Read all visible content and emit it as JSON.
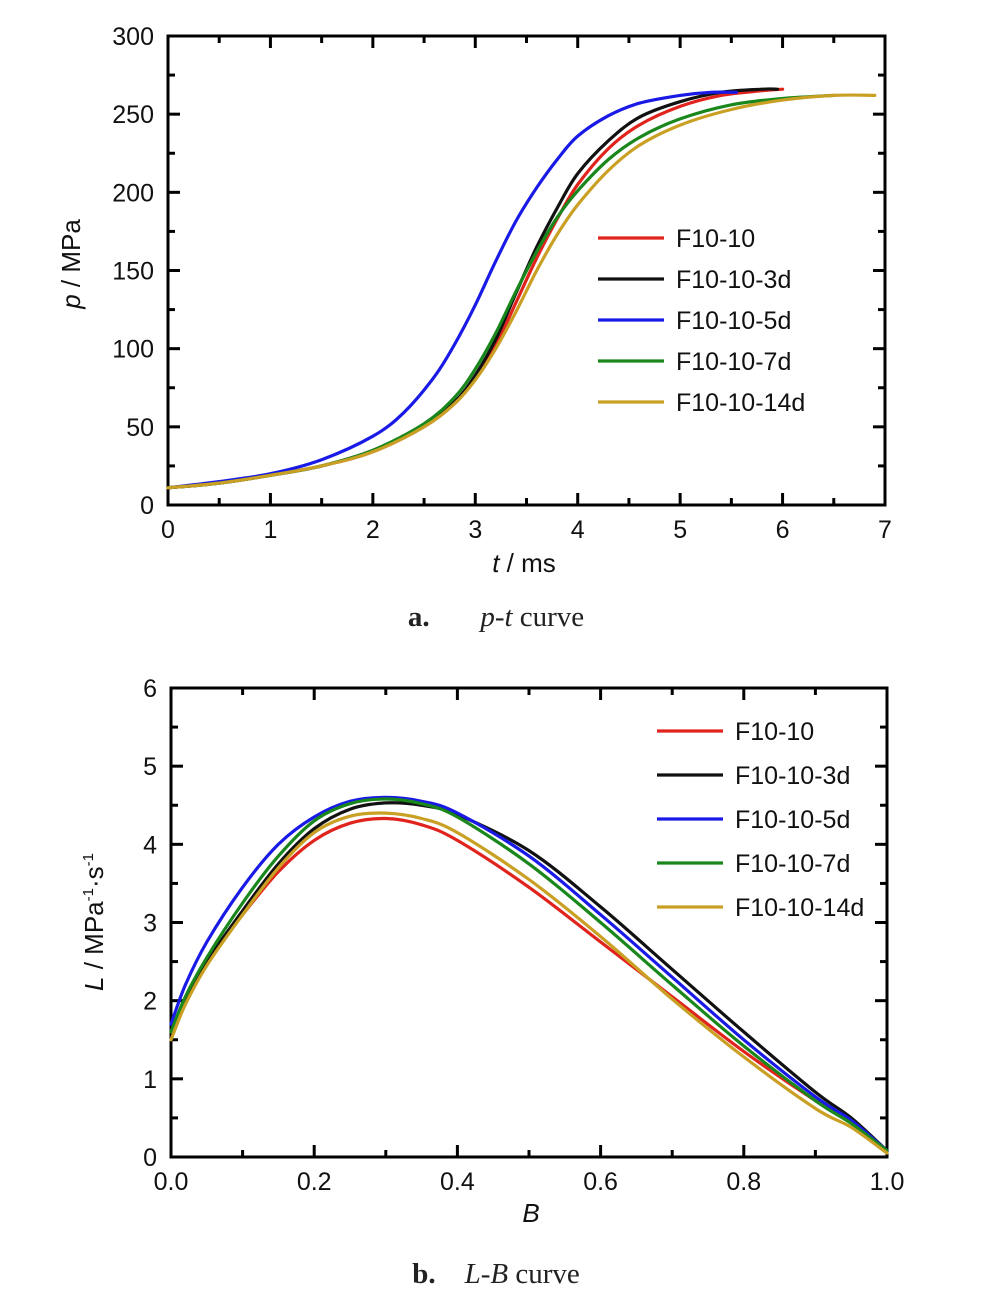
{
  "chart_data": [
    {
      "type": "line",
      "caption_letter": "a.",
      "caption_italic": "p-t",
      "caption_rest": " curve",
      "xlabel_italic": "t",
      "xlabel_rest": " / ms",
      "ylabel_italic": "p",
      "ylabel_rest": " / MPa",
      "xlim": [
        0,
        7
      ],
      "ylim": [
        0,
        300
      ],
      "xticks": [
        0,
        1,
        2,
        3,
        4,
        5,
        6,
        7
      ],
      "yticks": [
        0,
        50,
        100,
        150,
        200,
        250,
        300
      ],
      "legend_position": "center-right",
      "grid": false,
      "series": [
        {
          "name": "F10-10",
          "color": "#e0231c",
          "x": [
            0,
            0.5,
            1,
            1.5,
            2,
            2.5,
            2.8,
            3,
            3.2,
            3.4,
            3.6,
            3.8,
            4,
            4.3,
            4.6,
            5,
            5.4,
            5.8,
            6.0
          ],
          "y": [
            11,
            14,
            19,
            25,
            34,
            50,
            65,
            81,
            102,
            130,
            158,
            183,
            205,
            228,
            243,
            255,
            262,
            265,
            266
          ]
        },
        {
          "name": "F10-10-3d",
          "color": "#111111",
          "x": [
            0,
            0.5,
            1,
            1.5,
            2,
            2.5,
            2.8,
            3,
            3.2,
            3.4,
            3.6,
            3.8,
            4,
            4.3,
            4.6,
            5,
            5.4,
            5.8,
            5.95
          ],
          "y": [
            11,
            14,
            19,
            25,
            35,
            51,
            66,
            83,
            106,
            136,
            165,
            190,
            212,
            233,
            248,
            258,
            264,
            266,
            266
          ]
        },
        {
          "name": "F10-10-5d",
          "color": "#1a1ae6",
          "x": [
            0,
            0.5,
            1,
            1.5,
            2,
            2.3,
            2.6,
            2.8,
            3,
            3.2,
            3.4,
            3.6,
            3.8,
            4,
            4.3,
            4.6,
            5,
            5.3,
            5.55
          ],
          "y": [
            11,
            15,
            20,
            29,
            44,
            59,
            82,
            103,
            128,
            156,
            182,
            203,
            221,
            236,
            249,
            257,
            262,
            264,
            264
          ]
        },
        {
          "name": "F10-10-7d",
          "color": "#19871c",
          "x": [
            0,
            0.5,
            1,
            1.5,
            2,
            2.5,
            2.8,
            3,
            3.2,
            3.4,
            3.6,
            3.8,
            4,
            4.3,
            4.6,
            5,
            5.5,
            6,
            6.5
          ],
          "y": [
            11,
            14,
            19,
            25,
            35,
            52,
            69,
            87,
            110,
            137,
            162,
            184,
            201,
            221,
            235,
            247,
            256,
            260,
            262
          ]
        },
        {
          "name": "F10-10-14d",
          "color": "#c9a023",
          "x": [
            0,
            0.5,
            1,
            1.5,
            2,
            2.5,
            2.8,
            3,
            3.2,
            3.4,
            3.6,
            3.8,
            4,
            4.3,
            4.6,
            5,
            5.5,
            6,
            6.5,
            6.9
          ],
          "y": [
            11,
            14,
            19,
            25,
            34,
            50,
            65,
            80,
            100,
            124,
            150,
            173,
            192,
            214,
            230,
            243,
            253,
            259,
            262,
            262
          ]
        }
      ]
    },
    {
      "type": "line",
      "caption_letter": "b.",
      "caption_italic": "L-B",
      "caption_rest": " curve",
      "xlabel_italic": "B",
      "xlabel_rest": "",
      "ylabel_italic": "L",
      "ylabel_rest": " / MPa",
      "ylabel_sup1": "-1",
      "ylabel_mid": "·s",
      "ylabel_sup2": "-1",
      "xlim": [
        0,
        1
      ],
      "ylim": [
        0,
        6
      ],
      "xticks": [
        0.0,
        0.2,
        0.4,
        0.6,
        0.8,
        1.0
      ],
      "xtick_labels": [
        "0.0",
        "0.2",
        "0.4",
        "0.6",
        "0.8",
        "1.0"
      ],
      "yticks": [
        0,
        1,
        2,
        3,
        4,
        5,
        6
      ],
      "legend_position": "top-right",
      "grid": false,
      "series": [
        {
          "name": "F10-10",
          "color": "#e0231c",
          "x": [
            0,
            0.02,
            0.05,
            0.1,
            0.15,
            0.2,
            0.25,
            0.3,
            0.35,
            0.4,
            0.5,
            0.6,
            0.7,
            0.8,
            0.9,
            0.95,
            1.0
          ],
          "y": [
            1.6,
            2.0,
            2.5,
            3.1,
            3.65,
            4.05,
            4.27,
            4.33,
            4.25,
            4.05,
            3.45,
            2.75,
            2.05,
            1.35,
            0.72,
            0.45,
            0.08
          ]
        },
        {
          "name": "F10-10-3d",
          "color": "#111111",
          "x": [
            0,
            0.02,
            0.05,
            0.1,
            0.15,
            0.2,
            0.25,
            0.3,
            0.35,
            0.4,
            0.5,
            0.6,
            0.7,
            0.8,
            0.9,
            0.95,
            1.0
          ],
          "y": [
            1.6,
            2.0,
            2.5,
            3.15,
            3.75,
            4.2,
            4.45,
            4.53,
            4.5,
            4.38,
            3.92,
            3.2,
            2.4,
            1.6,
            0.83,
            0.5,
            0.08
          ]
        },
        {
          "name": "F10-10-5d",
          "color": "#1a1ae6",
          "x": [
            0,
            0.02,
            0.05,
            0.1,
            0.15,
            0.2,
            0.25,
            0.3,
            0.35,
            0.4,
            0.5,
            0.6,
            0.7,
            0.8,
            0.9,
            0.95,
            1.0
          ],
          "y": [
            1.7,
            2.2,
            2.75,
            3.45,
            4.0,
            4.35,
            4.55,
            4.6,
            4.55,
            4.4,
            3.85,
            3.1,
            2.3,
            1.5,
            0.77,
            0.47,
            0.08
          ]
        },
        {
          "name": "F10-10-7d",
          "color": "#19871c",
          "x": [
            0,
            0.02,
            0.05,
            0.1,
            0.15,
            0.2,
            0.25,
            0.3,
            0.35,
            0.4,
            0.5,
            0.6,
            0.7,
            0.8,
            0.9,
            0.95,
            1.0
          ],
          "y": [
            1.6,
            2.05,
            2.55,
            3.25,
            3.85,
            4.3,
            4.52,
            4.58,
            4.52,
            4.35,
            3.75,
            3.0,
            2.2,
            1.42,
            0.72,
            0.43,
            0.08
          ]
        },
        {
          "name": "F10-10-14d",
          "color": "#c9a023",
          "x": [
            0,
            0.02,
            0.05,
            0.1,
            0.15,
            0.2,
            0.25,
            0.3,
            0.35,
            0.4,
            0.5,
            0.6,
            0.7,
            0.8,
            0.9,
            0.95,
            1.0
          ],
          "y": [
            1.5,
            1.95,
            2.45,
            3.1,
            3.7,
            4.15,
            4.36,
            4.4,
            4.33,
            4.15,
            3.55,
            2.82,
            2.02,
            1.28,
            0.62,
            0.38,
            0.05
          ]
        }
      ]
    }
  ]
}
